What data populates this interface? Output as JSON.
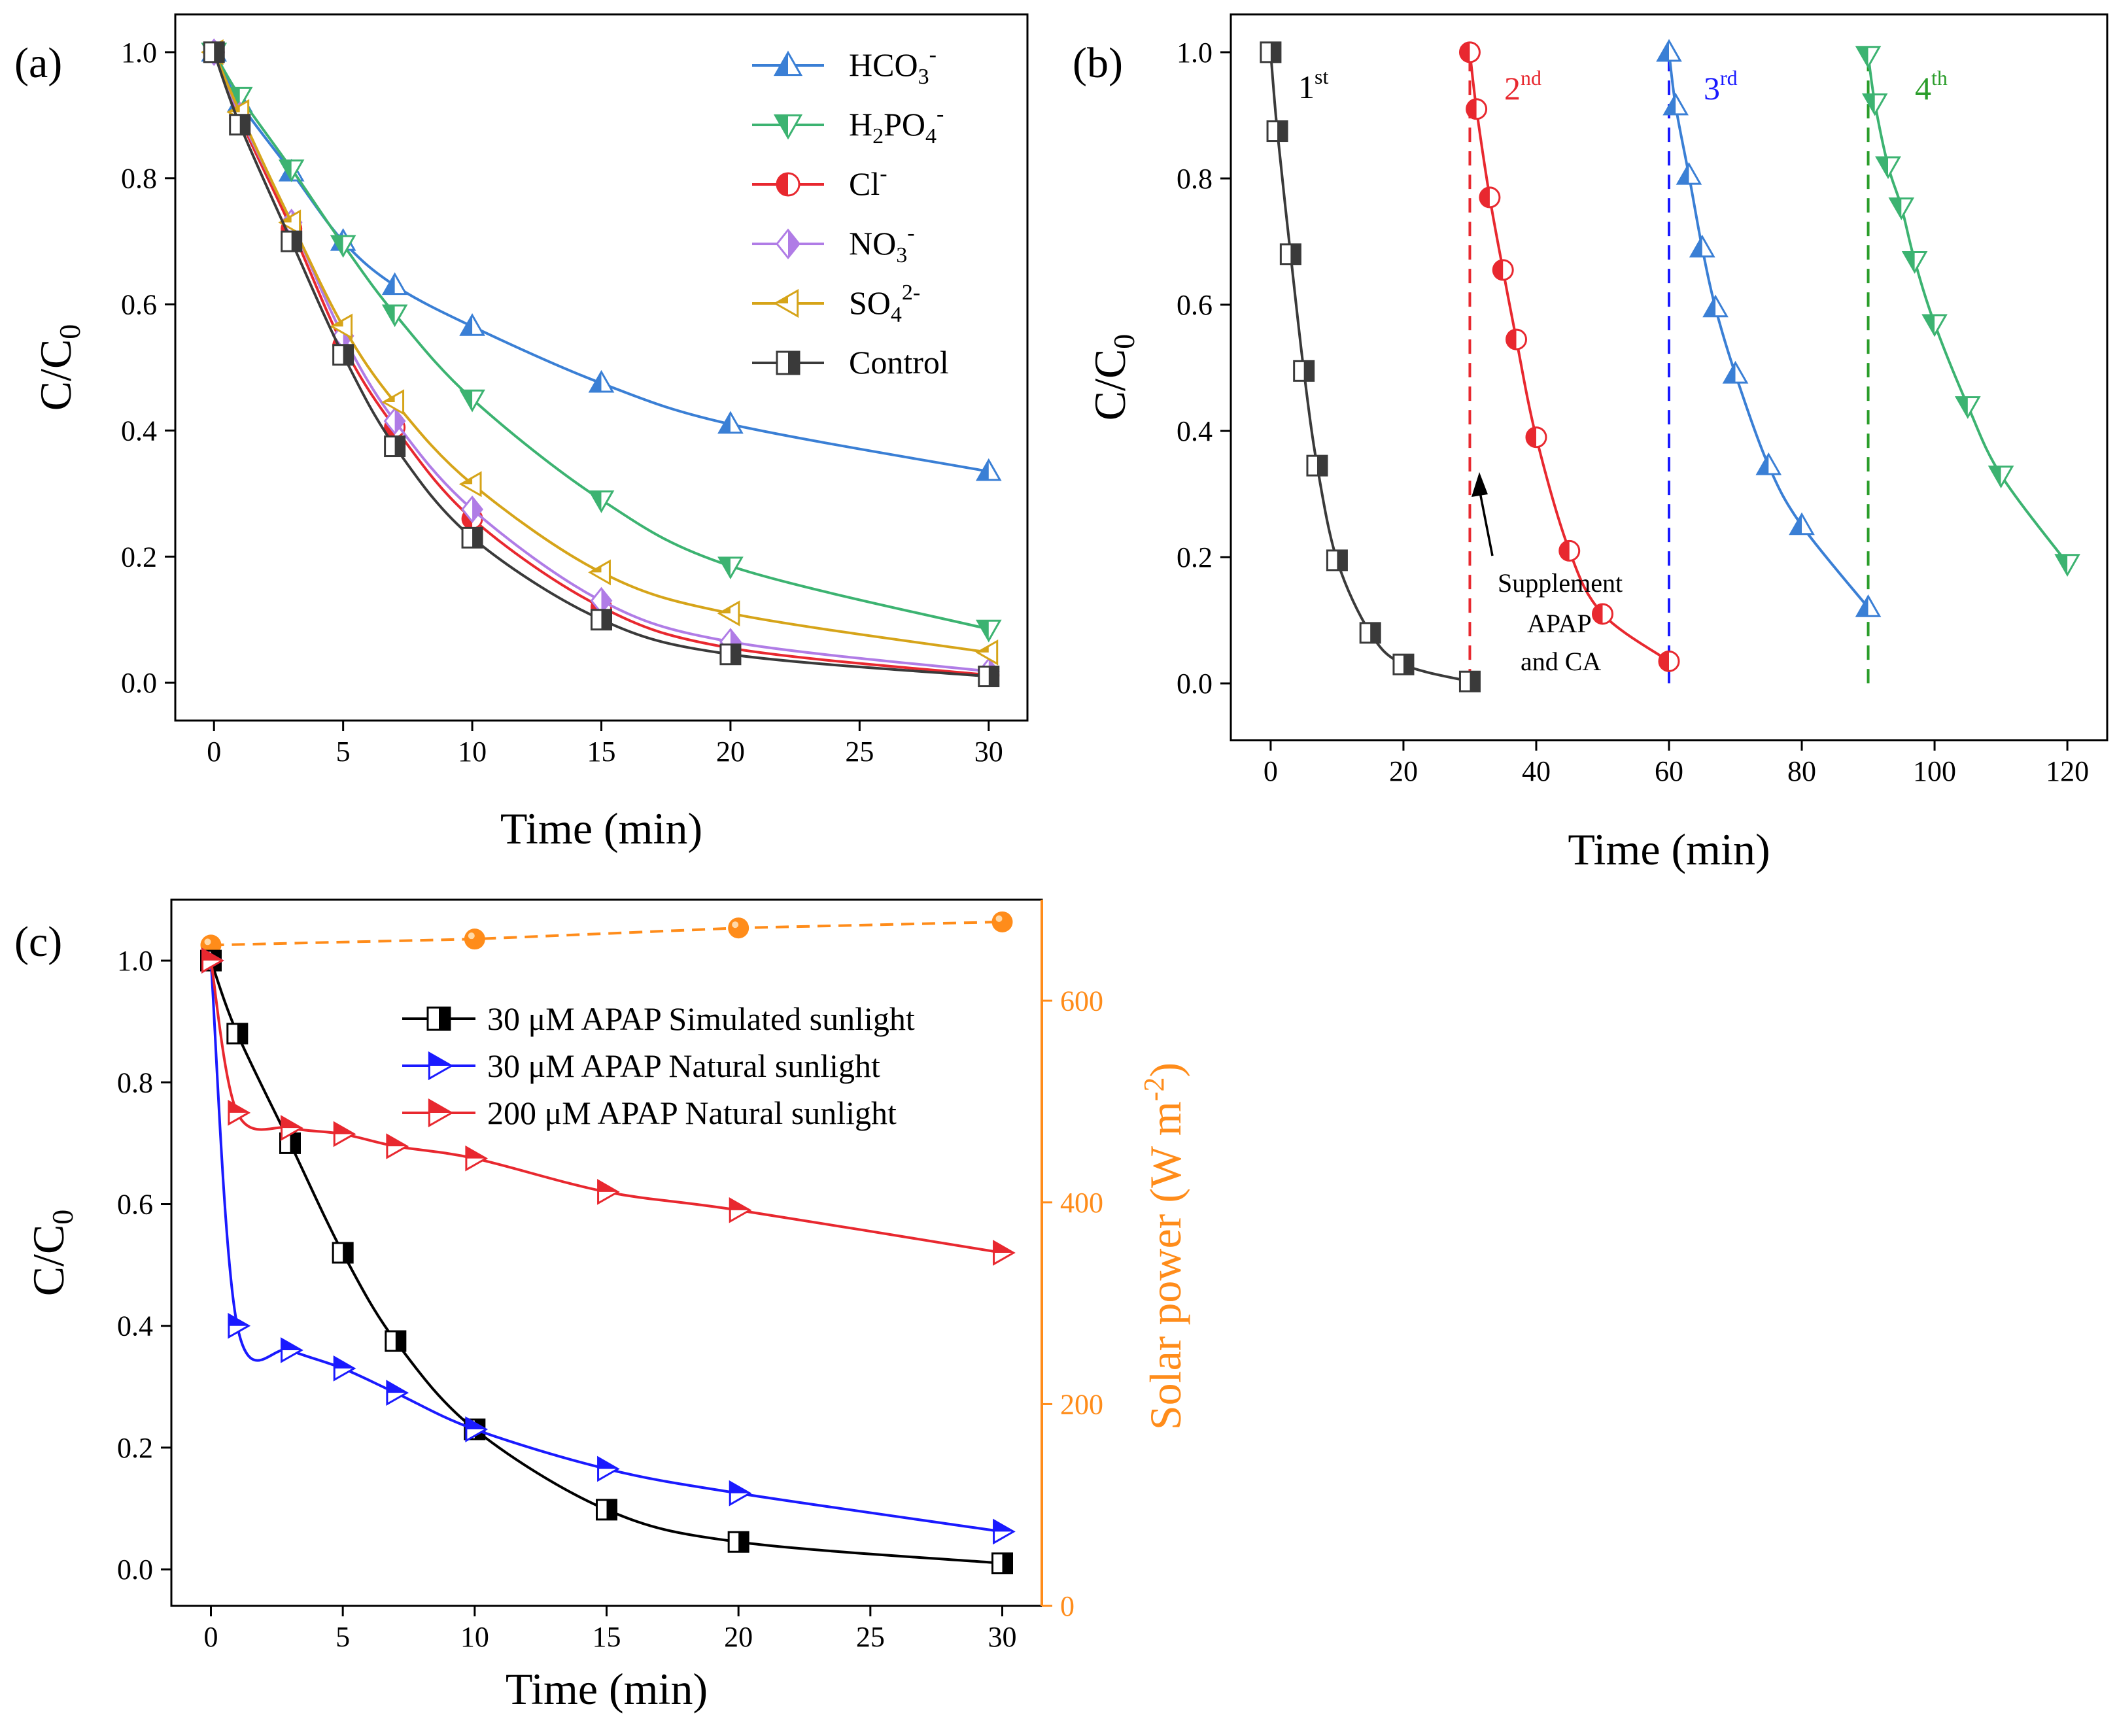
{
  "colors": {
    "blue": "#3a7fd5",
    "green": "#3cb371",
    "red": "#e8282f",
    "purple": "#b07ce6",
    "gold": "#d6a419",
    "dark": "#3a3a3a",
    "black": "#000000",
    "orange": "#ff8c1a",
    "cycle_blue": "#1a1aff",
    "cycle_green": "#2a9d2a"
  },
  "chart_data": [
    {
      "panel_label": "(a)",
      "type": "line",
      "xlabel": "Time (min)",
      "ylabel": "C/C",
      "ylabel_sub": "0",
      "xlim": [
        -1.5,
        31.5
      ],
      "ylim": [
        -0.06,
        1.06
      ],
      "xticks": [
        0,
        5,
        10,
        15,
        20,
        25,
        30
      ],
      "yticks": [
        0.0,
        0.2,
        0.4,
        0.6,
        0.8,
        1.0
      ],
      "x": [
        0,
        1,
        3,
        5,
        7,
        10,
        15,
        20,
        30
      ],
      "legend_position": "top-right",
      "series": [
        {
          "name": "HCO",
          "sub": "3",
          "sup": "-",
          "marker": "triangle-up",
          "color_key": "blue",
          "values": [
            1.0,
            0.92,
            0.81,
            0.7,
            0.63,
            0.565,
            0.475,
            0.41,
            0.335
          ]
        },
        {
          "name": "H",
          "name2": "PO",
          "sub": "2",
          "sub2": "4",
          "sup": "-",
          "marker": "triangle-down",
          "color_key": "green",
          "values": [
            1.0,
            0.93,
            0.815,
            0.695,
            0.585,
            0.45,
            0.29,
            0.185,
            0.085
          ]
        },
        {
          "name": "Cl",
          "sup": "-",
          "marker": "circle",
          "color_key": "red",
          "values": [
            1.0,
            0.895,
            0.72,
            0.535,
            0.405,
            0.26,
            0.12,
            0.055,
            0.012
          ]
        },
        {
          "name": "NO",
          "sub": "3",
          "sup": "-",
          "marker": "diamond",
          "color_key": "purple",
          "values": [
            1.0,
            0.9,
            0.73,
            0.55,
            0.415,
            0.275,
            0.13,
            0.065,
            0.018
          ]
        },
        {
          "name": "SO",
          "sub": "4",
          "sup": "2-",
          "marker": "triangle-left",
          "color_key": "gold",
          "values": [
            1.0,
            0.905,
            0.73,
            0.565,
            0.445,
            0.315,
            0.175,
            0.11,
            0.048
          ]
        },
        {
          "name": "Control",
          "marker": "square",
          "color_key": "dark",
          "values": [
            1.0,
            0.885,
            0.7,
            0.52,
            0.375,
            0.23,
            0.1,
            0.045,
            0.01
          ]
        }
      ]
    },
    {
      "panel_label": "(b)",
      "type": "line",
      "xlabel": "Time (min)",
      "ylabel": "C/C",
      "ylabel_sub": "0",
      "xlim": [
        -6,
        126
      ],
      "ylim": [
        -0.09,
        1.06
      ],
      "xticks": [
        0,
        20,
        40,
        60,
        80,
        100,
        120
      ],
      "yticks": [
        0.0,
        0.2,
        0.4,
        0.6,
        0.8,
        1.0
      ],
      "series": [
        {
          "label": "1",
          "label_sup": "st",
          "marker": "square",
          "color_key": "dark",
          "x": [
            0,
            1,
            3,
            5,
            7,
            10,
            15,
            20,
            30
          ],
          "values": [
            1.0,
            0.875,
            0.68,
            0.495,
            0.345,
            0.195,
            0.08,
            0.03,
            0.003
          ]
        },
        {
          "label": "2",
          "label_sup": "nd",
          "marker": "circle",
          "color_key": "red",
          "x": [
            30,
            31,
            33,
            35,
            37,
            40,
            45,
            50,
            60
          ],
          "values": [
            1.0,
            0.91,
            0.77,
            0.655,
            0.545,
            0.39,
            0.21,
            0.11,
            0.035
          ]
        },
        {
          "label": "3",
          "label_sup": "rd",
          "marker": "triangle-up",
          "color_key": "blue",
          "x": [
            60,
            61,
            63,
            65,
            67,
            70,
            75,
            80,
            90
          ],
          "values": [
            1.0,
            0.915,
            0.805,
            0.69,
            0.595,
            0.49,
            0.345,
            0.25,
            0.12
          ]
        },
        {
          "label": "4",
          "label_sup": "th",
          "marker": "triangle-down",
          "color_key": "green",
          "x": [
            90,
            91,
            93,
            95,
            97,
            100,
            105,
            110,
            120
          ],
          "values": [
            0.995,
            0.92,
            0.82,
            0.755,
            0.67,
            0.57,
            0.44,
            0.33,
            0.19
          ]
        }
      ],
      "supplement_lines": [
        {
          "x": 30,
          "color_key": "red"
        },
        {
          "x": 60,
          "color_key": "cycle_blue"
        },
        {
          "x": 90,
          "color_key": "cycle_green"
        }
      ],
      "annotation": [
        "Supplement",
        "APAP",
        "and CA"
      ]
    },
    {
      "panel_label": "(c)",
      "type": "line",
      "xlabel": "Time (min)",
      "ylabel": "C/C",
      "ylabel_sub": "0",
      "y2label": "Solar power (W m",
      "y2label_sup": "-2",
      "y2label_end": ")",
      "xlim": [
        -1.5,
        31.5
      ],
      "ylim": [
        -0.06,
        1.1
      ],
      "y2lim": [
        0,
        700
      ],
      "xticks": [
        0,
        5,
        10,
        15,
        20,
        25,
        30
      ],
      "yticks": [
        0.0,
        0.2,
        0.4,
        0.6,
        0.8,
        1.0
      ],
      "y2ticks": [
        0,
        200,
        400,
        600
      ],
      "legend_position": "top-center",
      "series": [
        {
          "name": "30 μM APAP   Simulated sunlight",
          "marker": "square",
          "color_key": "black",
          "x": [
            0,
            1,
            3,
            5,
            7,
            10,
            15,
            20,
            30
          ],
          "values": [
            1.0,
            0.88,
            0.7,
            0.52,
            0.375,
            0.23,
            0.098,
            0.045,
            0.01
          ]
        },
        {
          "name": "30 μM APAP   Natural sunlight",
          "marker": "triangle-right",
          "color_key": "cycle_blue",
          "x": [
            0,
            1,
            3,
            5,
            7,
            10,
            15,
            20,
            30
          ],
          "values": [
            1.0,
            0.4,
            0.36,
            0.33,
            0.29,
            0.23,
            0.165,
            0.125,
            0.062
          ]
        },
        {
          "name": "200 μM APAP   Natural sunlight",
          "marker": "triangle-right",
          "color_key": "red",
          "x": [
            0,
            1,
            3,
            5,
            7,
            10,
            15,
            20,
            30
          ],
          "values": [
            1.0,
            0.75,
            0.725,
            0.715,
            0.695,
            0.675,
            0.62,
            0.59,
            0.52
          ]
        }
      ],
      "solar_power": {
        "axis": "right",
        "marker": "circle",
        "color_key": "orange",
        "x": [
          0,
          10,
          20,
          30
        ],
        "values": [
          655,
          661,
          672,
          678
        ]
      }
    }
  ]
}
